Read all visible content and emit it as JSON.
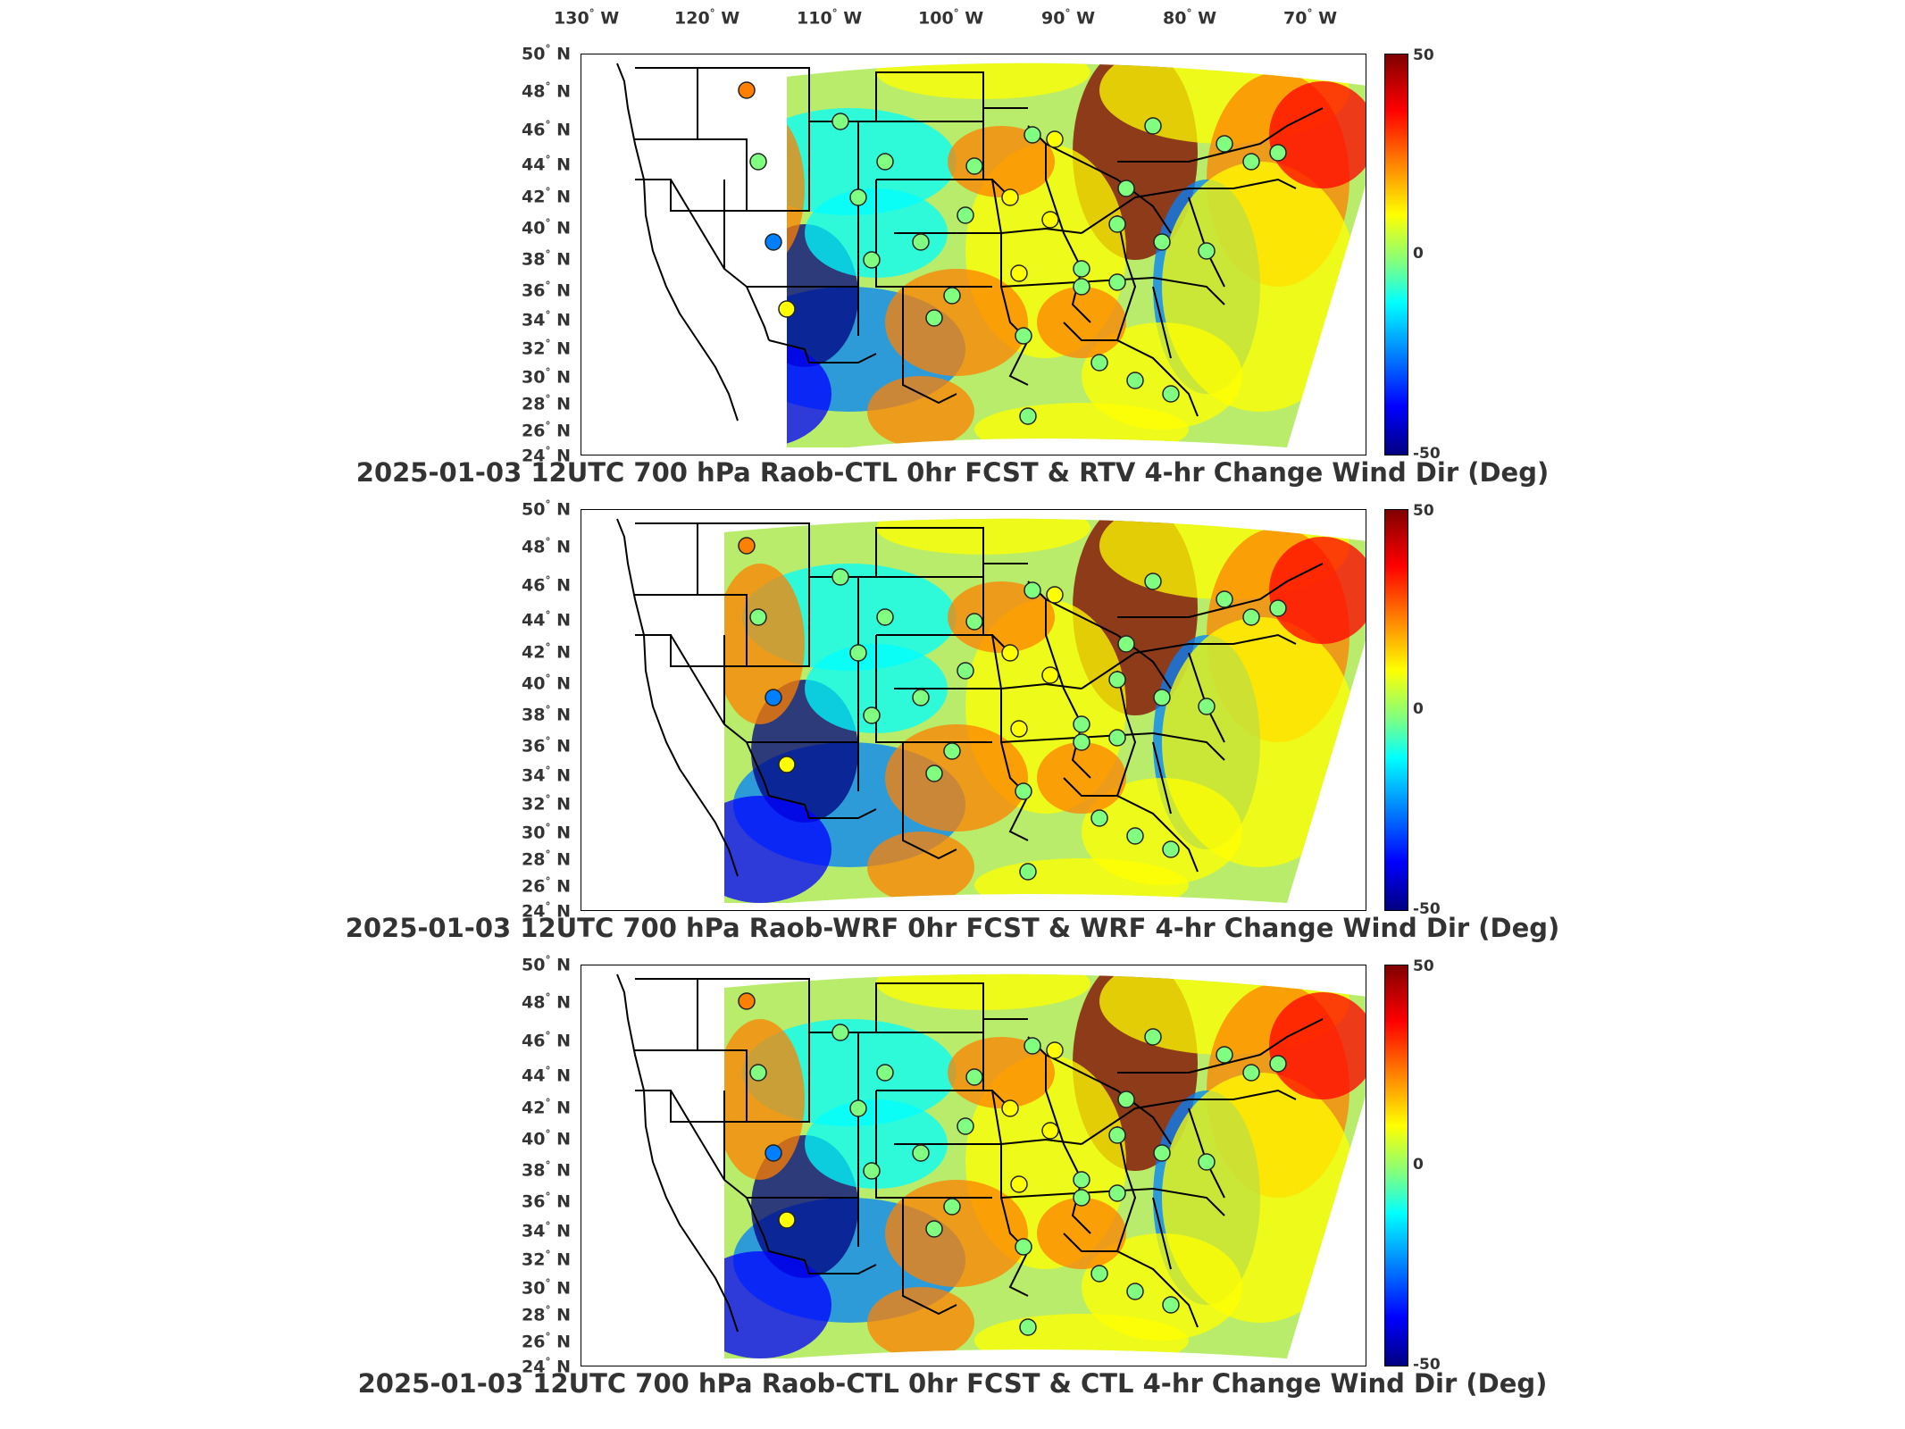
{
  "lon_labels": [
    {
      "deg": "130",
      "dir": "W"
    },
    {
      "deg": "120",
      "dir": "W"
    },
    {
      "deg": "110",
      "dir": "W"
    },
    {
      "deg": "100",
      "dir": "W"
    },
    {
      "deg": "90",
      "dir": "W"
    },
    {
      "deg": "80",
      "dir": "W"
    },
    {
      "deg": "70",
      "dir": "W"
    }
  ],
  "lat_labels": [
    {
      "deg": "50",
      "dir": "N"
    },
    {
      "deg": "48",
      "dir": "N"
    },
    {
      "deg": "46",
      "dir": "N"
    },
    {
      "deg": "44",
      "dir": "N"
    },
    {
      "deg": "42",
      "dir": "N"
    },
    {
      "deg": "40",
      "dir": "N"
    },
    {
      "deg": "38",
      "dir": "N"
    },
    {
      "deg": "36",
      "dir": "N"
    },
    {
      "deg": "34",
      "dir": "N"
    },
    {
      "deg": "32",
      "dir": "N"
    },
    {
      "deg": "30",
      "dir": "N"
    },
    {
      "deg": "28",
      "dir": "N"
    },
    {
      "deg": "26",
      "dir": "N"
    },
    {
      "deg": "24",
      "dir": "N"
    }
  ],
  "degree_symbol": "°",
  "colorbar": {
    "max": "50",
    "mid": "0",
    "min": "-50",
    "colors": [
      "#800000",
      "#ff0000",
      "#ff8000",
      "#ffff00",
      "#80ff80",
      "#00ffff",
      "#0080ff",
      "#0000ff",
      "#000080"
    ]
  },
  "panels": [
    {
      "title": "2025-01-03 12UTC 700 hPa Raob-CTL 0hr FCST & RTV 4-hr Change Wind Dir (Deg)"
    },
    {
      "title": "2025-01-03 12UTC 700 hPa Raob-WRF 0hr FCST & WRF 4-hr Change Wind Dir (Deg)"
    },
    {
      "title": "2025-01-03 12UTC 700 hPa Raob-CTL 0hr FCST & CTL 4-hr Change Wind Dir (Deg)"
    }
  ]
}
